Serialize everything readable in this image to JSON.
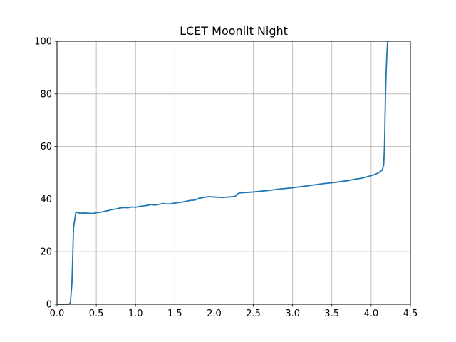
{
  "chart_data": {
    "type": "line",
    "title": "LCET Moonlit Night",
    "xlabel": "",
    "ylabel": "",
    "xlim": [
      0,
      4.5
    ],
    "ylim": [
      0,
      100
    ],
    "xticks": [
      0.0,
      0.5,
      1.0,
      1.5,
      2.0,
      2.5,
      3.0,
      3.5,
      4.0,
      4.5
    ],
    "xtick_labels": [
      "0.0",
      "0.5",
      "1.0",
      "1.5",
      "2.0",
      "2.5",
      "3.0",
      "3.5",
      "4.0",
      "4.5"
    ],
    "yticks": [
      0,
      20,
      40,
      60,
      80,
      100
    ],
    "ytick_labels": [
      "0",
      "20",
      "40",
      "60",
      "80",
      "100"
    ],
    "grid": true,
    "color": "#1f77b4",
    "series": [
      {
        "x": [
          0.0,
          0.15,
          0.17,
          0.19,
          0.2,
          0.21,
          0.22,
          0.24,
          0.27,
          0.3,
          0.35,
          0.4,
          0.45,
          0.5,
          0.55,
          0.6,
          0.65,
          0.7,
          0.75,
          0.8,
          0.85,
          0.9,
          0.95,
          1.0,
          1.05,
          1.1,
          1.15,
          1.2,
          1.25,
          1.3,
          1.35,
          1.4,
          1.45,
          1.5,
          1.55,
          1.6,
          1.65,
          1.7,
          1.75,
          1.8,
          1.85,
          1.9,
          1.95,
          2.0,
          2.05,
          2.1,
          2.15,
          2.2,
          2.25,
          2.28,
          2.3,
          2.32,
          2.35,
          2.4,
          2.5,
          2.6,
          2.7,
          2.8,
          2.9,
          3.0,
          3.1,
          3.2,
          3.3,
          3.4,
          3.5,
          3.6,
          3.7,
          3.75,
          3.8,
          3.85,
          3.9,
          3.95,
          4.0,
          4.05,
          4.1,
          4.14,
          4.16,
          4.17,
          4.175,
          4.18,
          4.19,
          4.2,
          4.21,
          4.215
        ],
        "y": [
          0,
          0,
          0.5,
          8,
          18,
          29,
          31,
          35,
          34.8,
          34.6,
          34.7,
          34.6,
          34.5,
          34.8,
          35.0,
          35.3,
          35.6,
          36.0,
          36.2,
          36.6,
          36.8,
          36.7,
          37.0,
          36.9,
          37.2,
          37.4,
          37.6,
          37.9,
          37.7,
          38.0,
          38.3,
          38.1,
          38.2,
          38.5,
          38.7,
          38.9,
          39.2,
          39.5,
          39.6,
          40.2,
          40.5,
          40.8,
          40.9,
          40.8,
          40.7,
          40.6,
          40.7,
          40.8,
          41.0,
          41.3,
          42.0,
          42.3,
          42.4,
          42.5,
          42.7,
          43.0,
          43.3,
          43.7,
          44.0,
          44.3,
          44.7,
          45.1,
          45.5,
          45.9,
          46.2,
          46.6,
          47.0,
          47.3,
          47.6,
          47.8,
          48.1,
          48.5,
          48.9,
          49.4,
          50.1,
          51.0,
          53,
          60,
          68,
          76,
          87,
          95,
          100,
          100
        ]
      }
    ]
  }
}
